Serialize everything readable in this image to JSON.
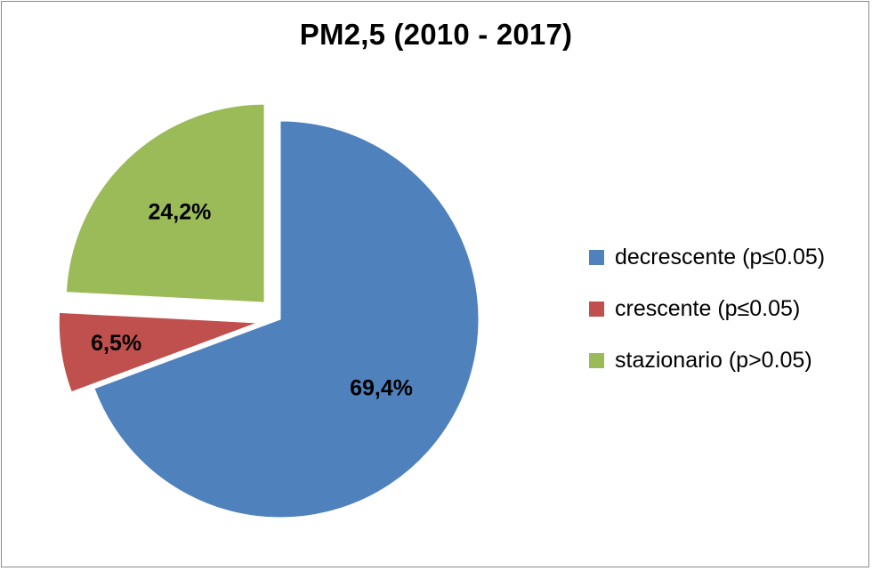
{
  "chart_data": {
    "type": "pie",
    "title": "PM2,5 (2010 - 2017)",
    "legend_position": "right",
    "slices": [
      {
        "name": "decrescente (p≤0.05)",
        "value": 69.4,
        "label": "69,4%",
        "color": "#4F81BD",
        "exploded": false
      },
      {
        "name": "crescente (p≤0.05)",
        "value": 6.5,
        "label": "6,5%",
        "color": "#C0504D",
        "exploded": true
      },
      {
        "name": "stazionario (p>0.05)",
        "value": 24.2,
        "label": "24,2%",
        "color": "#9BBB59",
        "exploded": true
      }
    ]
  }
}
